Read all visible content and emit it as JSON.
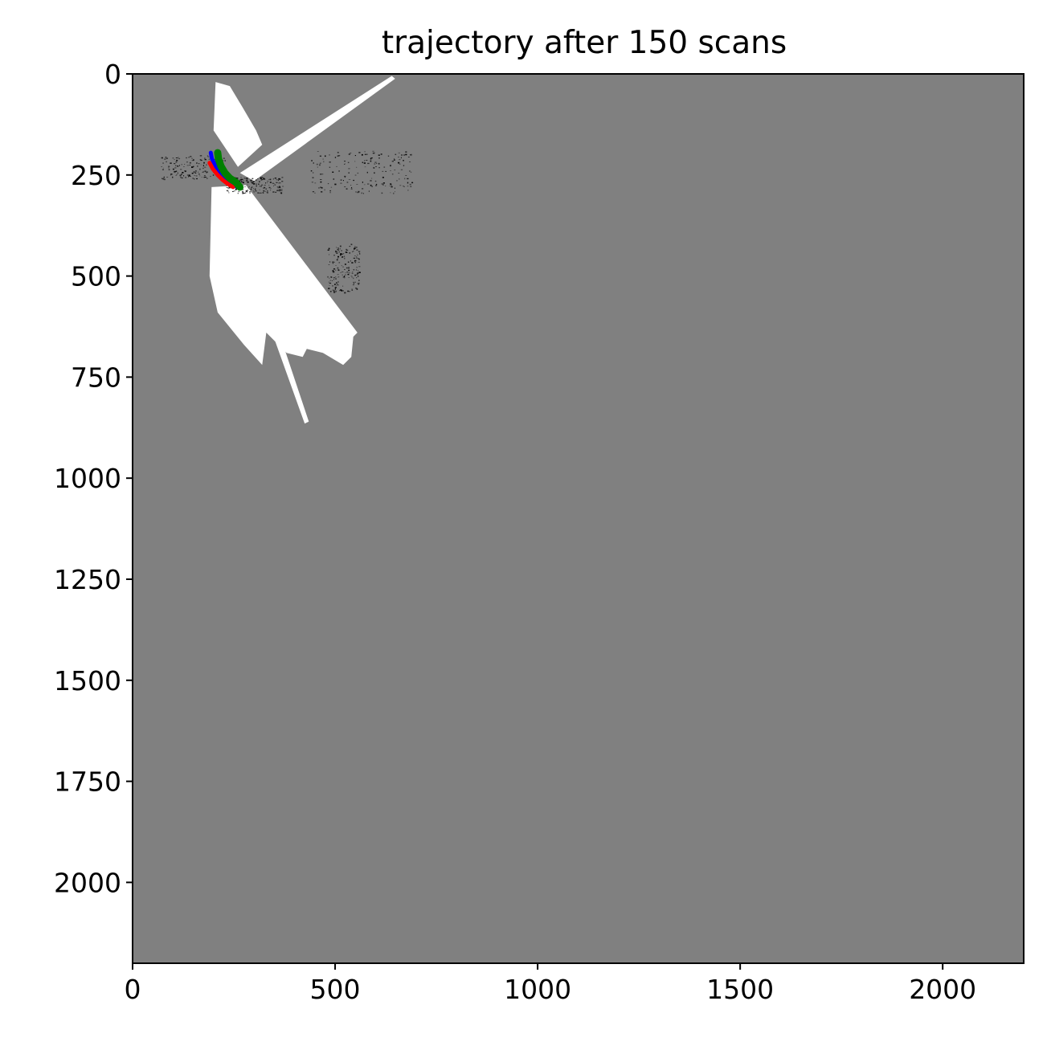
{
  "chart_data": {
    "type": "heatmap",
    "title": "trajectory after 150 scans",
    "xlabel": "",
    "ylabel": "",
    "xlim": [
      0,
      2200
    ],
    "ylim": [
      2200,
      0
    ],
    "y_inverted": true,
    "xticks": [
      0,
      500,
      1000,
      1500,
      2000
    ],
    "yticks": [
      0,
      250,
      500,
      750,
      1000,
      1250,
      1500,
      1750,
      2000
    ],
    "grid": false,
    "legend": "none",
    "colors": {
      "background_map": "#808080",
      "free_space": "#ffffff",
      "occupied": "#000000",
      "trajectory_estimate": "#0000ff",
      "trajectory_truth": "#ff0000",
      "trajectory_odometry": "#008000"
    },
    "free_space_polygons": [
      [
        [
          200,
          140
        ],
        [
          205,
          20
        ],
        [
          240,
          30
        ],
        [
          270,
          80
        ],
        [
          305,
          140
        ],
        [
          320,
          175
        ],
        [
          260,
          230
        ]
      ],
      [
        [
          265,
          245
        ],
        [
          640,
          5
        ],
        [
          648,
          12
        ],
        [
          300,
          265
        ]
      ],
      [
        [
          280,
          275
        ],
        [
          555,
          640
        ],
        [
          545,
          650
        ],
        [
          540,
          700
        ],
        [
          520,
          720
        ],
        [
          470,
          690
        ],
        [
          430,
          680
        ],
        [
          420,
          700
        ],
        [
          380,
          690
        ],
        [
          330,
          640
        ],
        [
          320,
          720
        ],
        [
          275,
          670
        ],
        [
          210,
          590
        ],
        [
          190,
          500
        ],
        [
          195,
          280
        ]
      ],
      [
        [
          330,
          600
        ],
        [
          345,
          590
        ],
        [
          435,
          860
        ],
        [
          425,
          865
        ]
      ]
    ],
    "occupied_clusters": [
      {
        "x": [
          70,
          230
        ],
        "y": [
          200,
          260
        ]
      },
      {
        "x": [
          230,
          370
        ],
        "y": [
          255,
          295
        ]
      },
      {
        "x": [
          440,
          690
        ],
        "y": [
          190,
          295
        ]
      },
      {
        "x": [
          480,
          560
        ],
        "y": [
          420,
          540
        ]
      }
    ],
    "trajectories": [
      {
        "color": "blue",
        "x": [
          193,
          196,
          205,
          215,
          228,
          240,
          255
        ],
        "y": [
          195,
          210,
          228,
          245,
          260,
          270,
          278
        ]
      },
      {
        "color": "red",
        "x": [
          190,
          198,
          210,
          222,
          235,
          248
        ],
        "y": [
          220,
          235,
          250,
          262,
          272,
          280
        ]
      },
      {
        "color": "green",
        "x": [
          210,
          212,
          218,
          228,
          240,
          255,
          265
        ],
        "y": [
          195,
          210,
          228,
          245,
          258,
          268,
          280
        ]
      }
    ]
  }
}
